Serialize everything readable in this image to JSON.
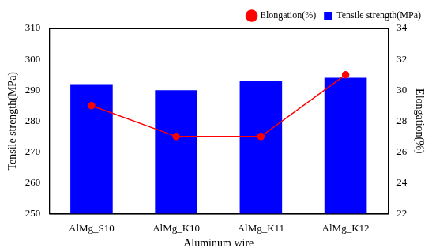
{
  "chart_data": {
    "type": "bar",
    "categories": [
      "AlMg_S10",
      "AlMg_K10",
      "AlMg_K11",
      "AlMg_K12"
    ],
    "series": [
      {
        "name": "Tensile strength(MPa)",
        "type": "bar",
        "color": "#0000ff",
        "values": [
          292,
          290,
          293,
          294
        ]
      },
      {
        "name": "Elongation(%)",
        "type": "line",
        "color": "#ff0000",
        "marker": "circle",
        "axis": "y2",
        "values": [
          29,
          27,
          27,
          31
        ]
      }
    ],
    "x_label": "Aluminum wire",
    "y_label": "Tensile strength(MPa)",
    "y2_label": "Elongation(%)",
    "ylim": [
      250,
      310
    ],
    "yticks": [
      250,
      260,
      270,
      280,
      290,
      300,
      310
    ],
    "y2lim": [
      22,
      34
    ],
    "y2ticks": [
      22,
      24,
      26,
      28,
      30,
      32,
      34
    ],
    "grid": false,
    "legend": "upper right"
  }
}
